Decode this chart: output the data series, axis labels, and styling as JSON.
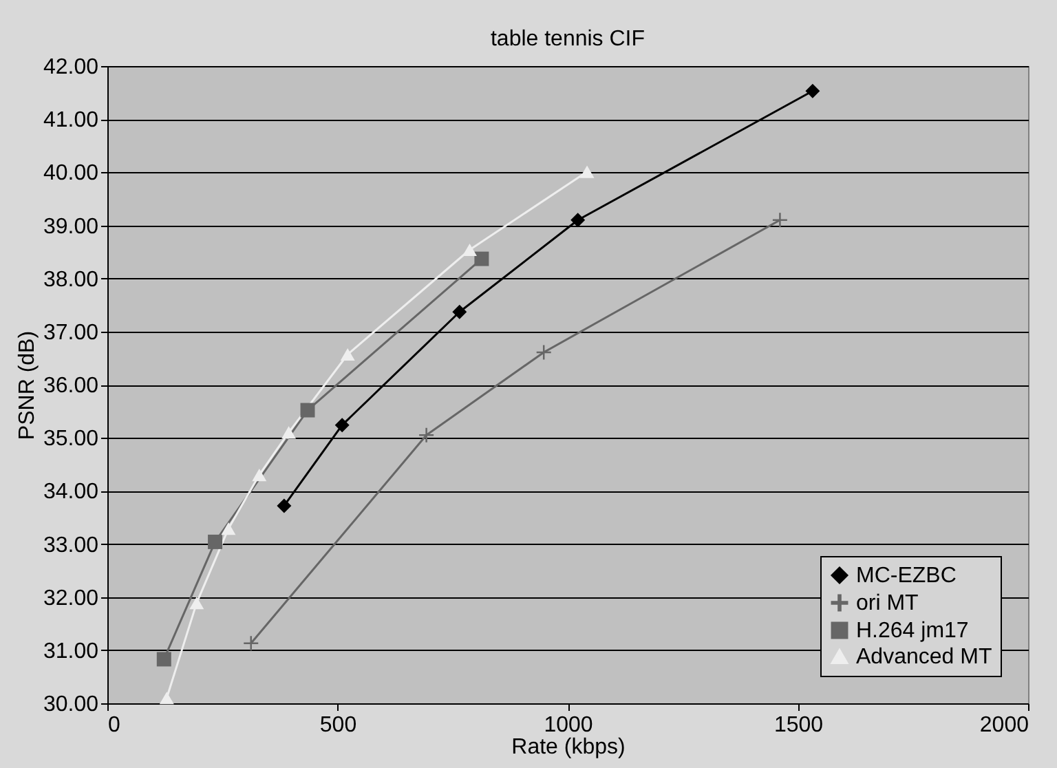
{
  "chart_data": {
    "type": "line",
    "title": "table tennis CIF",
    "xlabel": "Rate (kbps)",
    "ylabel": "PSNR (dB)",
    "xlim": [
      0,
      2000
    ],
    "xticks": [
      0,
      500,
      1000,
      1500,
      2000
    ],
    "ylim": [
      30,
      42
    ],
    "yticks": [
      {
        "value": 30,
        "label": "30.00"
      },
      {
        "value": 31,
        "label": "31.00"
      },
      {
        "value": 32,
        "label": "32.00"
      },
      {
        "value": 33,
        "label": "33.00"
      },
      {
        "value": 34,
        "label": "34.00"
      },
      {
        "value": 35,
        "label": "35.00"
      },
      {
        "value": 36,
        "label": "36.00"
      },
      {
        "value": 37,
        "label": "37.00"
      },
      {
        "value": 38,
        "label": "38.00"
      },
      {
        "value": 39,
        "label": "39.00"
      },
      {
        "value": 40,
        "label": "40.00"
      },
      {
        "value": 41,
        "label": "41.00"
      },
      {
        "value": 42,
        "label": "42.00"
      }
    ],
    "grid": "y",
    "legend": "bottom right",
    "line_style": "solid",
    "series": [
      {
        "name": "MC-EZBC",
        "color": "#000000",
        "marker": "diamond",
        "x": [
          384,
          510,
          765,
          1022,
          1532
        ],
        "values": [
          33.72,
          35.24,
          37.37,
          39.1,
          41.53
        ]
      },
      {
        "name": "ori MT",
        "color": "#666666",
        "marker": "cross",
        "x": [
          312,
          693,
          948,
          1461
        ],
        "values": [
          31.13,
          35.05,
          36.61,
          39.1
        ]
      },
      {
        "name": "H.264 jm17",
        "color": "#666666",
        "marker": "square",
        "x": [
          123,
          234,
          435,
          813
        ],
        "values": [
          30.83,
          33.04,
          35.52,
          38.37
        ]
      },
      {
        "name": "Advanced MT",
        "color": "#eeeeee",
        "marker": "triangle",
        "x": [
          129,
          194,
          263,
          330,
          394,
          522,
          787,
          1042
        ],
        "values": [
          30.1,
          31.89,
          33.29,
          34.3,
          35.1,
          36.57,
          38.54,
          40.01
        ]
      }
    ]
  }
}
